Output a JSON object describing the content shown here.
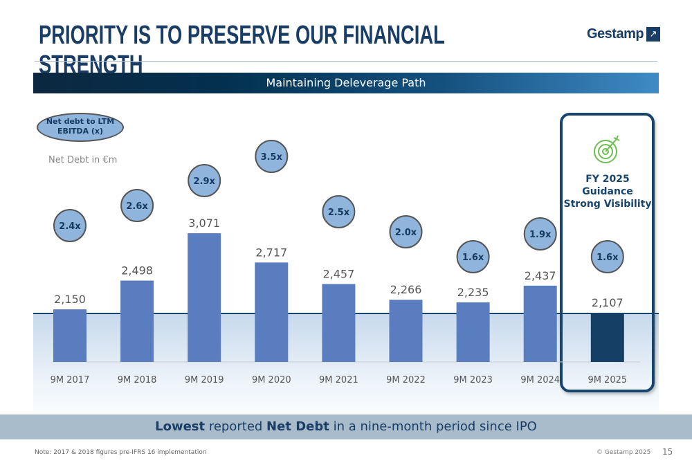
{
  "header": {
    "title": "PRIORITY IS TO PRESERVE OUR FINANCIAL STRENGTH",
    "logo": "Gestamp"
  },
  "banner": "Maintaining Deleverage Path",
  "guidance": {
    "line1": "FY 2025",
    "line2": "Guidance",
    "line3": "Strong Visibility",
    "icon": "target-icon"
  },
  "colors": {
    "bar": "#5a7dc0",
    "highlight_bar": "#163f66",
    "ratio_fill": "#90b5dd",
    "accent": "#17456d"
  },
  "chart_data": {
    "type": "bar",
    "ylabel": "Net Debt in €m",
    "legend_ratio": "Net debt to LTM EBITDA (x)",
    "categories": [
      "9M 2017",
      "9M 2018",
      "9M 2019",
      "9M 2020",
      "9M 2021",
      "9M 2022",
      "9M 2023",
      "9M 2024",
      "9M 2025"
    ],
    "values": [
      2150,
      2498,
      3071,
      2717,
      2457,
      2266,
      2235,
      2437,
      2107
    ],
    "value_labels": [
      "2,150",
      "2,498",
      "3,071",
      "2,717",
      "2,457",
      "2,266",
      "2,235",
      "2,437",
      "2,107"
    ],
    "ratios": [
      "2.4x",
      "2.6x",
      "2.9x",
      "3.5x",
      "2.5x",
      "2.0x",
      "1.6x",
      "1.9x",
      "1.6x"
    ],
    "highlight_index": 8
  },
  "footer": {
    "bold1": "Lowest",
    "text1": " reported ",
    "bold2": "Net Debt",
    "text2": " in a nine-month period since IPO",
    "note": "Note: 2017 & 2018 figures pre-IFRS 16 implementation",
    "copyright": "© Gestamp 2025",
    "page": "15"
  }
}
